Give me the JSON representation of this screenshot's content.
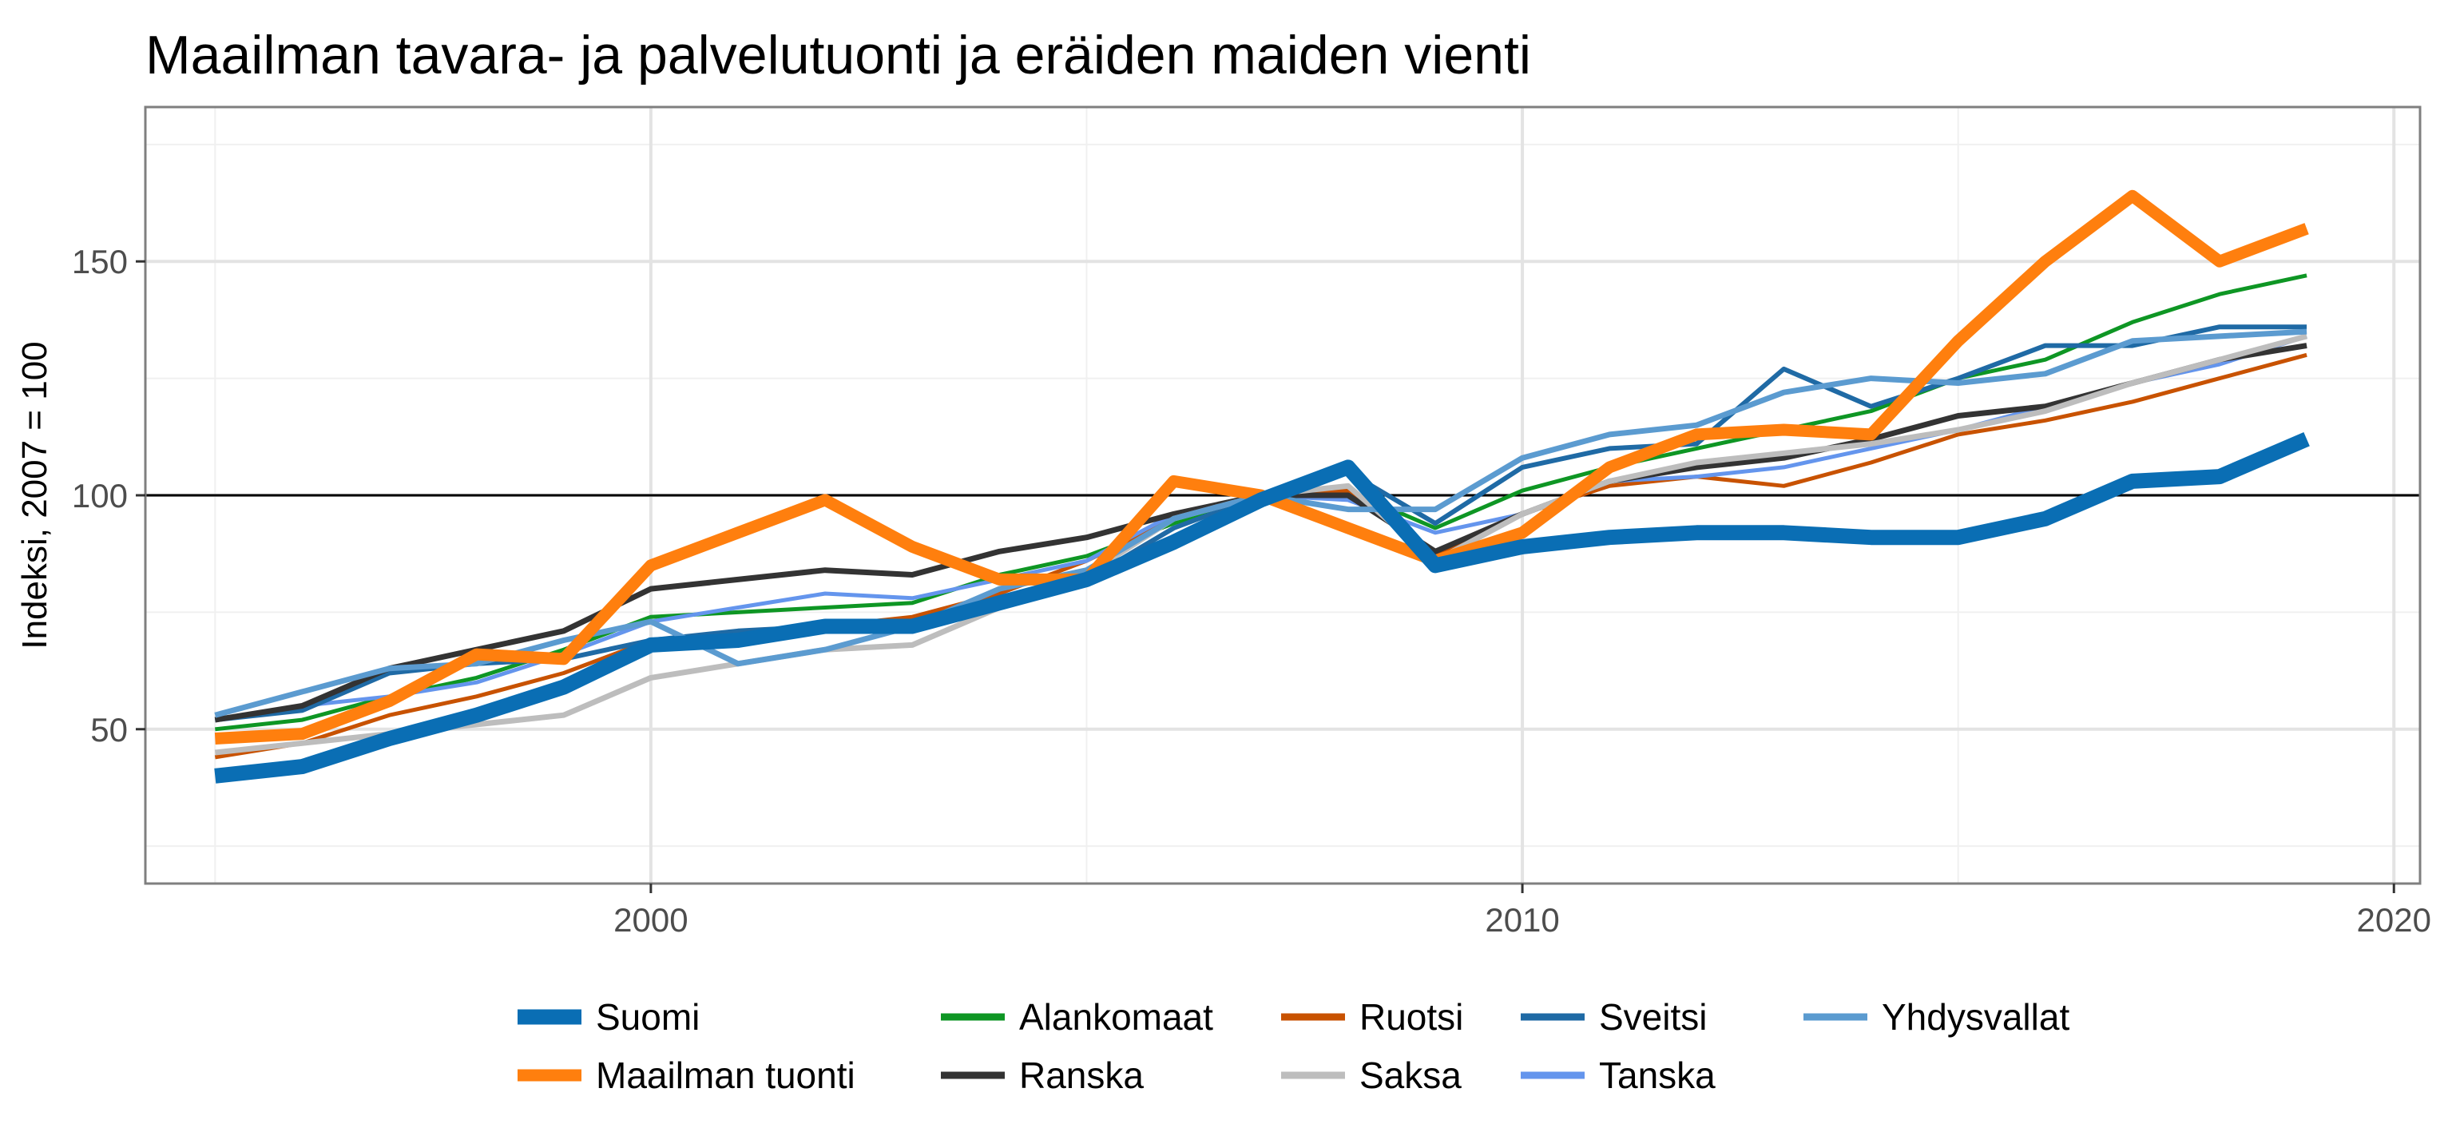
{
  "chart_data": {
    "type": "line",
    "title": "Maailman tavara- ja palvelutuonti ja eräiden maiden vienti",
    "xlabel": "",
    "ylabel": "Indeksi, 2007 = 100",
    "xlim": [
      1994.2,
      2020.3
    ],
    "ylim": [
      17,
      183
    ],
    "x_ticks": [
      2000,
      2010,
      2020
    ],
    "y_ticks": [
      50,
      100,
      150
    ],
    "reference_line": 100,
    "grid": true,
    "legend_position": "bottom",
    "x": [
      1995,
      1996,
      1997,
      1998,
      1999,
      2000,
      2001,
      2002,
      2003,
      2004,
      2005,
      2006,
      2007,
      2008,
      2009,
      2010,
      2011,
      2012,
      2013,
      2014,
      2015,
      2016,
      2017,
      2018,
      2019
    ],
    "series": [
      {
        "name": "Suomi",
        "color": "#0a6eb4",
        "width": 19,
        "values": [
          40,
          42,
          48,
          53,
          59,
          68,
          69,
          72,
          72,
          77,
          82,
          90,
          99,
          106,
          85,
          89,
          91,
          92,
          92,
          91,
          91,
          95,
          103,
          104,
          112
        ]
      },
      {
        "name": "Maailman tuonti",
        "color": "#ff7f0e",
        "width": 15,
        "values": [
          48,
          49,
          56,
          66,
          65,
          85,
          92,
          99,
          89,
          82,
          82,
          103,
          100,
          93,
          86,
          92,
          106,
          113,
          114,
          113,
          133,
          150,
          164,
          150,
          157
        ]
      },
      {
        "name": "Alankomaat",
        "color": "#0e9624",
        "width": 5,
        "values": [
          50,
          52,
          57,
          61,
          67,
          74,
          75,
          76,
          77,
          83,
          87,
          94,
          100,
          101,
          93,
          101,
          106,
          110,
          114,
          118,
          125,
          129,
          137,
          143,
          147
        ]
      },
      {
        "name": "Ranska",
        "color": "#333333",
        "width": 7,
        "values": [
          52,
          55,
          63,
          67,
          71,
          80,
          82,
          84,
          83,
          88,
          91,
          96,
          100,
          100,
          88,
          96,
          103,
          106,
          108,
          112,
          117,
          119,
          124,
          129,
          132
        ]
      },
      {
        "name": "Ruotsi",
        "color": "#c85200",
        "width": 5,
        "values": [
          44,
          47,
          53,
          57,
          62,
          69,
          70,
          72,
          74,
          79,
          86,
          95,
          100,
          101,
          87,
          96,
          102,
          104,
          102,
          107,
          113,
          116,
          120,
          125,
          130
        ]
      },
      {
        "name": "Saksa",
        "color": "#bdbdbd",
        "width": 7,
        "values": [
          45,
          47,
          49,
          51,
          53,
          61,
          64,
          67,
          68,
          76,
          83,
          95,
          100,
          102,
          86,
          96,
          103,
          107,
          109,
          111,
          114,
          118,
          124,
          129,
          134
        ]
      },
      {
        "name": "Sveitsi",
        "color": "#1f6aa5",
        "width": 6,
        "values": [
          52,
          54,
          62,
          64,
          65,
          69,
          71,
          72,
          71,
          77,
          82,
          93,
          100,
          105,
          94,
          106,
          110,
          111,
          127,
          119,
          125,
          132,
          132,
          136,
          136
        ]
      },
      {
        "name": "Tanska",
        "color": "#6495ed",
        "width": 5,
        "values": [
          52,
          55,
          57,
          60,
          66,
          73,
          76,
          79,
          78,
          82,
          86,
          96,
          100,
          99,
          92,
          96,
          103,
          104,
          106,
          110,
          114,
          119,
          124,
          128,
          134
        ]
      },
      {
        "name": "Yhdysvallat",
        "color": "#5b9bd0",
        "width": 7,
        "values": [
          53,
          58,
          63,
          64,
          69,
          73,
          64,
          67,
          72,
          80,
          84,
          95,
          100,
          97,
          97,
          108,
          113,
          115,
          122,
          125,
          124,
          126,
          133,
          134,
          135
        ]
      }
    ],
    "legend_order": [
      "Suomi",
      "Maailman tuonti",
      "Alankomaat",
      "Ranska",
      "Ruotsi",
      "Saksa",
      "Sveitsi",
      "Tanska",
      "Yhdysvallat"
    ]
  }
}
